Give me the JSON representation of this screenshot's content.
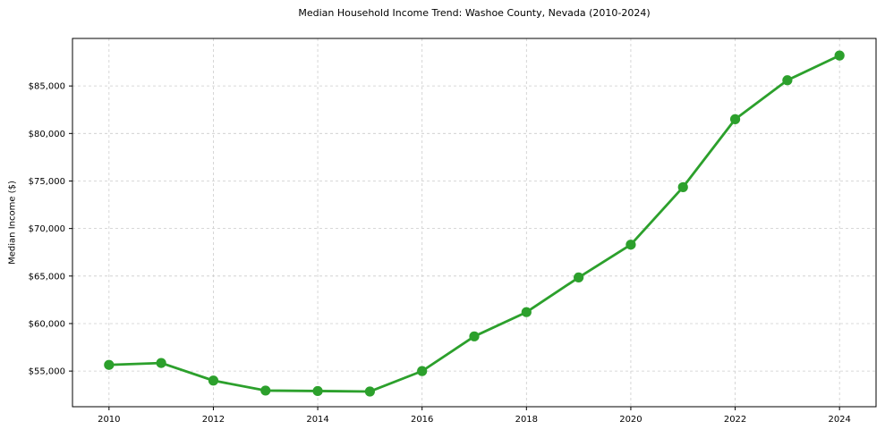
{
  "chart_data": {
    "type": "line",
    "title": "Median Household Income Trend: Washoe County, Nevada (2010-2024)",
    "xlabel": "",
    "ylabel": "Median Income ($)",
    "x": [
      2010,
      2011,
      2012,
      2013,
      2014,
      2015,
      2016,
      2017,
      2018,
      2019,
      2020,
      2021,
      2022,
      2023,
      2024
    ],
    "series": [
      {
        "name": "Median Household Income",
        "values": [
          55650,
          55850,
          54000,
          52950,
          52900,
          52850,
          55000,
          58650,
          61200,
          64850,
          68300,
          74350,
          81500,
          85600,
          88200
        ]
      }
    ],
    "x_ticks": {
      "values": [
        2010,
        2012,
        2014,
        2016,
        2018,
        2020,
        2022,
        2024
      ],
      "labels": [
        "2010",
        "2012",
        "2014",
        "2016",
        "2018",
        "2020",
        "2022",
        "2024"
      ]
    },
    "y_ticks": {
      "values": [
        55000,
        60000,
        65000,
        70000,
        75000,
        80000,
        85000
      ],
      "labels": [
        "$55,000",
        "$60,000",
        "$65,000",
        "$70,000",
        "$75,000",
        "$80,000",
        "$85,000"
      ]
    },
    "xlim": [
      2009.3,
      2024.7
    ],
    "ylim": [
      51250,
      90000
    ],
    "grid": true,
    "legend": false,
    "line_color": "#2ca02c",
    "grid_color": "#cccccc",
    "spine_color": "#000000",
    "background": "#ffffff",
    "marker": "o"
  }
}
